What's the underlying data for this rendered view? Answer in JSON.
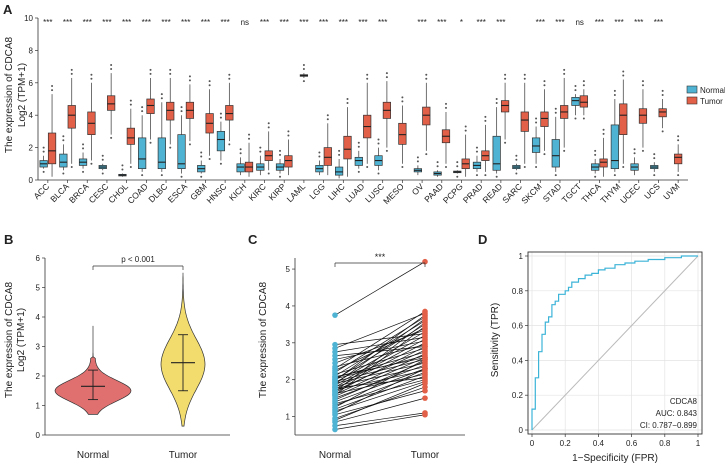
{
  "panels": {
    "a": "A",
    "b": "B",
    "c": "C",
    "d": "D"
  },
  "colors": {
    "normal": "#4fb3d3",
    "tumor": "#e25f48",
    "normal_violin": "#e07070",
    "tumor_violin": "#f2dc6e",
    "roc": "#3cb4d8",
    "diag": "#bbbbbb",
    "pair_line": "#111111",
    "border": "#333333"
  },
  "chart_data": [
    {
      "panel": "A",
      "type": "boxplot",
      "ylabel": "The expression of CDCA8",
      "ylabel2": "Log2 (TPM+1)",
      "ylim": [
        0,
        10
      ],
      "yticks": [
        0,
        2,
        4,
        6,
        8,
        10
      ],
      "legend": {
        "position": "right",
        "items": [
          "Normal",
          "Tumor"
        ]
      },
      "categories": [
        "ACC",
        "BLCA",
        "BRCA",
        "CESC",
        "CHOL",
        "COAD",
        "DLBC",
        "ESCA",
        "GBM",
        "HNSC",
        "KICH",
        "KIRC",
        "KIRP",
        "LAML",
        "LGG",
        "LIHC",
        "LUAD",
        "LUSC",
        "MESO",
        "OV",
        "PAAD",
        "PCPG",
        "PRAD",
        "READ",
        "SARC",
        "SKCM",
        "STAD",
        "TGCT",
        "THCA",
        "THYM",
        "UCEC",
        "UCS",
        "UVM"
      ],
      "significance": [
        "***",
        "***",
        "***",
        "***",
        "***",
        "***",
        "***",
        "***",
        "***",
        "***",
        "ns",
        "***",
        "***",
        "***",
        "***",
        "***",
        "***",
        "***",
        "",
        "***",
        "***",
        "*",
        "***",
        "***",
        "",
        "***",
        "***",
        "ns",
        "***",
        "***",
        "***",
        "***",
        ""
      ],
      "normal": [
        [
          0.7,
          0.8,
          1.0,
          1.2,
          1.5
        ],
        [
          0.6,
          0.8,
          1.1,
          1.6,
          2.2
        ],
        [
          0.7,
          0.9,
          1.1,
          1.3,
          1.7
        ],
        [
          0.6,
          0.7,
          0.8,
          0.9,
          1.0
        ],
        [
          0.2,
          0.25,
          0.3,
          0.35,
          0.4
        ],
        [
          0.5,
          0.7,
          1.3,
          2.6,
          4.0
        ],
        [
          0.5,
          0.7,
          1.1,
          2.6,
          4.8
        ],
        [
          0.4,
          0.7,
          1.0,
          2.8,
          4.0
        ],
        [
          0.4,
          0.5,
          0.7,
          0.9,
          1.2
        ],
        [
          1.2,
          1.8,
          2.5,
          3.0,
          3.6
        ],
        [
          0.3,
          0.5,
          0.8,
          1.0,
          1.4
        ],
        [
          0.3,
          0.6,
          0.8,
          1.0,
          1.5
        ],
        [
          0.4,
          0.6,
          0.8,
          1.0,
          1.3
        ],
        null,
        [
          0.3,
          0.5,
          0.7,
          0.9,
          1.2
        ],
        [
          0.1,
          0.3,
          0.5,
          0.8,
          1.3
        ],
        [
          0.7,
          0.9,
          1.2,
          1.4,
          1.8
        ],
        [
          0.6,
          0.9,
          1.2,
          1.5,
          2.0
        ],
        null,
        [
          0.3,
          0.5,
          0.6,
          0.7,
          0.9
        ],
        [
          0.2,
          0.3,
          0.4,
          0.5,
          0.6
        ],
        [
          0.4,
          0.45,
          0.5,
          0.55,
          0.6
        ],
        [
          0.5,
          0.7,
          0.9,
          1.1,
          1.5
        ],
        [
          0.4,
          0.6,
          1.0,
          2.7,
          4.5
        ],
        [
          0.6,
          0.7,
          0.8,
          0.9,
          1.0
        ],
        [
          1.0,
          1.7,
          2.1,
          2.6,
          3.3
        ],
        [
          0.5,
          0.8,
          1.5,
          2.5,
          3.9
        ],
        [
          4.0,
          4.6,
          4.9,
          5.1,
          5.3
        ],
        [
          0.4,
          0.6,
          0.8,
          1.0,
          1.3
        ],
        [
          0.5,
          0.7,
          1.2,
          3.4,
          5.0
        ],
        [
          0.3,
          0.6,
          0.8,
          1.0,
          1.4
        ],
        [
          0.5,
          0.7,
          0.8,
          0.9,
          1.1
        ],
        null
      ],
      "tumor": [
        [
          0.2,
          1.0,
          1.8,
          2.9,
          5.3
        ],
        [
          1.0,
          3.2,
          4.0,
          4.6,
          6.3
        ],
        [
          1.2,
          2.8,
          3.5,
          4.2,
          6.0
        ],
        [
          2.8,
          4.3,
          4.7,
          5.2,
          6.6
        ],
        [
          1.0,
          2.2,
          2.6,
          3.2,
          4.4
        ],
        [
          2.5,
          4.1,
          4.6,
          5.0,
          6.3
        ],
        [
          2.2,
          3.7,
          4.3,
          4.8,
          6.3
        ],
        [
          2.4,
          3.8,
          4.3,
          4.8,
          5.9
        ],
        [
          1.5,
          2.9,
          3.5,
          4.1,
          5.6
        ],
        [
          2.4,
          3.7,
          4.1,
          4.6,
          6.0
        ],
        [
          0.2,
          0.5,
          0.8,
          1.1,
          2.3
        ],
        [
          0.6,
          1.2,
          1.5,
          1.8,
          3.0
        ],
        [
          0.3,
          0.8,
          1.2,
          1.5,
          2.5
        ],
        [
          6.3,
          6.4,
          6.45,
          6.5,
          6.6
        ],
        [
          0.3,
          0.9,
          1.4,
          2.0,
          3.5
        ],
        [
          0.2,
          1.3,
          1.9,
          2.7,
          4.5
        ],
        [
          1.0,
          2.6,
          3.3,
          4.0,
          6.0
        ],
        [
          2.0,
          3.8,
          4.3,
          4.8,
          6.1
        ],
        [
          1.0,
          2.2,
          2.8,
          3.5,
          4.6
        ],
        [
          1.8,
          3.4,
          4.0,
          4.5,
          6.0
        ],
        [
          1.0,
          2.3,
          2.7,
          3.1,
          4.2
        ],
        [
          0.2,
          0.7,
          1.0,
          1.3,
          2.8
        ],
        [
          0.5,
          1.2,
          1.5,
          1.8,
          3.4
        ],
        [
          2.5,
          4.2,
          4.6,
          4.9,
          6.0
        ],
        [
          1.0,
          3.0,
          3.7,
          4.2,
          6.0
        ],
        [
          1.8,
          3.3,
          3.8,
          4.2,
          5.6
        ],
        [
          2.0,
          3.8,
          4.2,
          4.6,
          6.3
        ],
        [
          4.0,
          4.5,
          4.8,
          5.2,
          5.6
        ],
        [
          0.2,
          0.8,
          1.1,
          1.3,
          2.6
        ],
        [
          1.0,
          2.8,
          4.0,
          4.7,
          6.2
        ],
        [
          2.0,
          3.5,
          4.0,
          4.4,
          5.6
        ],
        [
          3.2,
          3.9,
          4.2,
          4.4,
          5.0
        ],
        [
          0.5,
          1.0,
          1.4,
          1.6,
          2.2
        ]
      ]
    },
    {
      "panel": "B",
      "type": "violin",
      "ylabel": "The expression of CDCA8",
      "ylabel2": "Log2 (TPM+1)",
      "ylim": [
        0,
        6
      ],
      "yticks": [
        0,
        1,
        2,
        3,
        4,
        5,
        6
      ],
      "categories": [
        "Normal",
        "Tumor"
      ],
      "annotation": "p < 0.001",
      "box": [
        [
          1.2,
          1.4,
          1.65,
          1.85,
          2.2
        ],
        [
          1.5,
          1.9,
          2.45,
          2.9,
          3.4
        ]
      ],
      "range": [
        [
          0.7,
          3.7
        ],
        [
          0.3,
          5.5
        ]
      ]
    },
    {
      "panel": "C",
      "type": "paired",
      "ylabel": "The expression of CDCA8",
      "ylim": [
        0.5,
        5.3
      ],
      "yticks": [
        1,
        2,
        3,
        4,
        5
      ],
      "categories": [
        "Normal",
        "Tumor"
      ],
      "annotation": "***",
      "normal": [
        0.65,
        0.75,
        0.85,
        0.95,
        1.05,
        1.15,
        1.2,
        1.3,
        1.35,
        1.4,
        1.45,
        1.5,
        1.55,
        1.6,
        1.62,
        1.65,
        1.7,
        1.72,
        1.75,
        1.8,
        1.82,
        1.85,
        1.9,
        1.92,
        1.95,
        2.0,
        2.02,
        2.05,
        2.1,
        2.15,
        2.2,
        2.25,
        2.3,
        2.35,
        2.55,
        2.75,
        2.95,
        3.75,
        1.58,
        1.68,
        1.78,
        1.88,
        1.98,
        2.08,
        0.9,
        1.1,
        1.25,
        2.45,
        2.65,
        2.85
      ],
      "tumor": [
        1.05,
        1.1,
        1.5,
        1.8,
        1.7,
        1.95,
        2.1,
        2.2,
        2.0,
        2.3,
        2.5,
        2.4,
        2.6,
        2.7,
        2.15,
        2.9,
        2.8,
        2.25,
        3.0,
        3.1,
        2.35,
        3.2,
        2.45,
        3.3,
        2.55,
        3.5,
        2.65,
        2.75,
        3.6,
        2.85,
        3.7,
        3.4,
        3.85,
        2.95,
        3.05,
        3.15,
        3.25,
        5.2,
        3.45,
        3.55,
        2.05,
        3.65,
        3.75,
        2.6,
        1.9,
        2.3,
        2.55,
        3.35,
        2.9,
        3.8
      ]
    },
    {
      "panel": "D",
      "type": "line",
      "title": "CDCA8",
      "xlabel": "1−Specificity (FPR)",
      "ylabel": "Sensitivity (TPR)",
      "xlim": [
        0,
        1
      ],
      "ylim": [
        0,
        1
      ],
      "ticks": [
        0.0,
        0.2,
        0.4,
        0.6,
        0.8,
        1.0
      ],
      "annotations": [
        "AUC: 0.843",
        "CI: 0.787−0.899"
      ],
      "x": [
        0,
        0,
        0.02,
        0.02,
        0.04,
        0.04,
        0.06,
        0.06,
        0.08,
        0.08,
        0.1,
        0.1,
        0.12,
        0.12,
        0.14,
        0.14,
        0.16,
        0.16,
        0.2,
        0.2,
        0.22,
        0.22,
        0.24,
        0.24,
        0.28,
        0.28,
        0.32,
        0.32,
        0.36,
        0.36,
        0.4,
        0.4,
        0.44,
        0.44,
        0.5,
        0.5,
        0.56,
        0.56,
        0.62,
        0.62,
        0.7,
        0.7,
        0.8,
        0.8,
        0.9,
        0.9,
        1.0
      ],
      "y": [
        0,
        0.12,
        0.12,
        0.3,
        0.3,
        0.45,
        0.45,
        0.55,
        0.55,
        0.62,
        0.62,
        0.65,
        0.65,
        0.72,
        0.72,
        0.74,
        0.74,
        0.78,
        0.78,
        0.8,
        0.8,
        0.82,
        0.82,
        0.85,
        0.85,
        0.87,
        0.87,
        0.89,
        0.89,
        0.9,
        0.9,
        0.92,
        0.92,
        0.93,
        0.93,
        0.95,
        0.95,
        0.96,
        0.96,
        0.97,
        0.97,
        0.98,
        0.98,
        0.99,
        0.99,
        1.0,
        1.0
      ]
    }
  ]
}
